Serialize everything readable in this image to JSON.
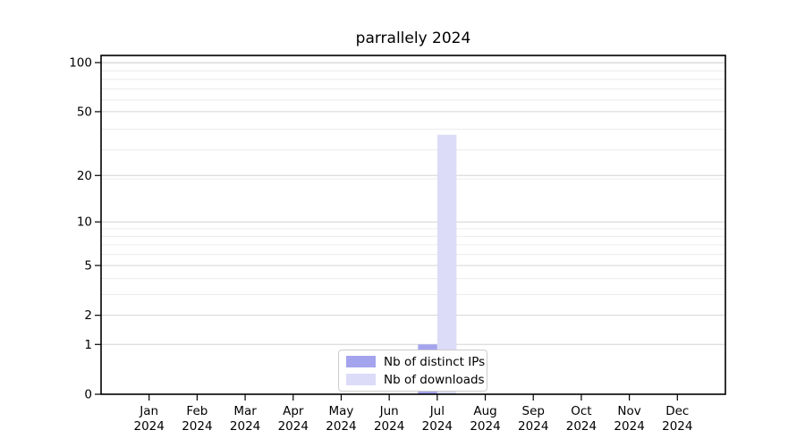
{
  "chart_data": {
    "type": "bar",
    "title": "parrallely 2024",
    "categories": [
      "Jan 2024",
      "Feb 2024",
      "Mar 2024",
      "Apr 2024",
      "May 2024",
      "Jun 2024",
      "Jul 2024",
      "Aug 2024",
      "Sep 2024",
      "Oct 2024",
      "Nov 2024",
      "Dec 2024"
    ],
    "series": [
      {
        "name": "Nb of distinct IPs",
        "color": "#a4a4ee",
        "values": [
          0,
          0,
          0,
          0,
          0,
          0,
          1,
          0,
          0,
          0,
          0,
          0
        ]
      },
      {
        "name": "Nb of downloads",
        "color": "#dcdcf8",
        "values": [
          0,
          0,
          0,
          0,
          0,
          0,
          36,
          0,
          0,
          0,
          0,
          0
        ]
      }
    ],
    "yscale": "log1p",
    "ylim": [
      0,
      111
    ],
    "yticks": [
      0,
      1,
      2,
      5,
      10,
      20,
      50,
      100
    ],
    "xlabel": "",
    "ylabel": "",
    "grid": "horizontal major+minor",
    "legend_position": "bottom-center",
    "colors": {
      "axis": "#000000",
      "grid_major": "#d4d4d4",
      "grid_minor": "#ececec",
      "legend_border": "#cccccc",
      "background": "#ffffff"
    }
  }
}
